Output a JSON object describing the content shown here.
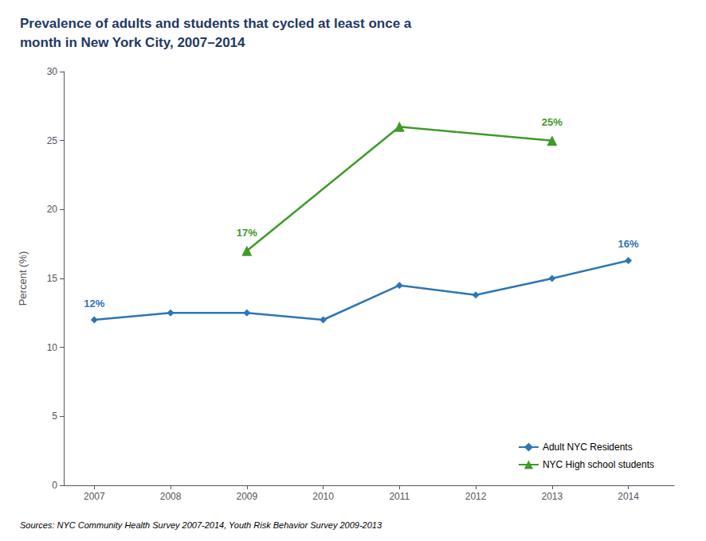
{
  "chart_data": {
    "type": "line",
    "title": "Prevalence of adults and students that cycled at least once a\nmonth in New York City, 2007–2014",
    "title_color": "#1F3864",
    "y_label": "Percent (%)",
    "source": "Sources: NYC Community Health Survey 2007-2014, Youth Risk Behavior Survey 2009-2013",
    "xlim": [
      2006.6,
      2014.6
    ],
    "xticks": [
      2007,
      2008,
      2009,
      2010,
      2011,
      2012,
      2013,
      2014
    ],
    "ylim": [
      0,
      30
    ],
    "yticks": [
      0,
      5,
      10,
      15,
      20,
      25,
      30
    ],
    "grid": false,
    "legend": "lower right",
    "series": [
      {
        "name": "Adult NYC Residents",
        "color": "#2E75B6",
        "marker": "diamond",
        "x": [
          2007,
          2008,
          2009,
          2010,
          2011,
          2012,
          2013,
          2014
        ],
        "values": [
          12,
          12.5,
          12.5,
          12,
          14.5,
          13.8,
          15,
          16.3
        ]
      },
      {
        "name": "NYC High school students",
        "color": "#3E9B28",
        "marker": "triangle",
        "x": [
          2009,
          2011,
          2013
        ],
        "values": [
          17,
          26,
          25
        ]
      }
    ],
    "annotations": [
      {
        "series": "Adult NYC Residents",
        "x": 2007,
        "y": 12,
        "text": "12%"
      },
      {
        "series": "Adult NYC Residents",
        "x": 2014,
        "y": 16.3,
        "text": "16%"
      },
      {
        "series": "NYC High school students",
        "x": 2009,
        "y": 17,
        "text": "17%"
      },
      {
        "series": "NYC High school students",
        "x": 2013,
        "y": 25,
        "text": "25%"
      }
    ]
  }
}
